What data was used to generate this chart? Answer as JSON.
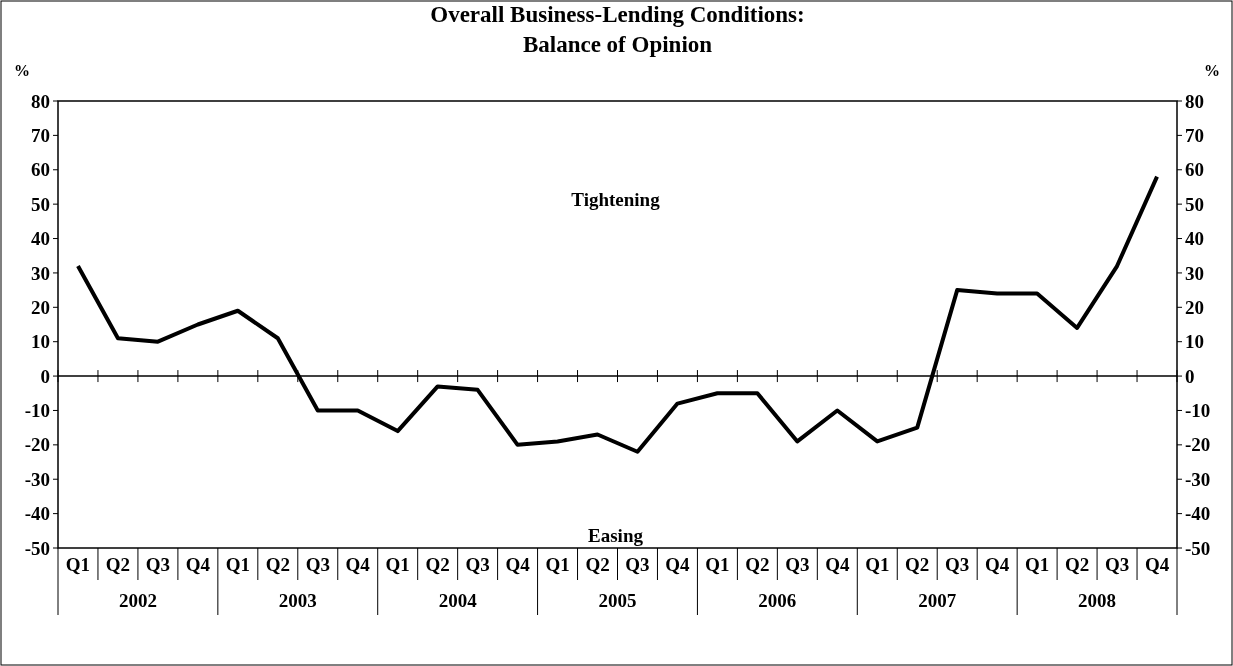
{
  "chart_data": {
    "type": "line",
    "title": "Overall Business-Lending Conditions:\nBalance of Opinion",
    "ylabel": "%",
    "y2label": "%",
    "categories": [
      "Q1",
      "Q2",
      "Q3",
      "Q4",
      "Q1",
      "Q2",
      "Q3",
      "Q4",
      "Q1",
      "Q2",
      "Q3",
      "Q4",
      "Q1",
      "Q2",
      "Q3",
      "Q4",
      "Q1",
      "Q2",
      "Q3",
      "Q4",
      "Q1",
      "Q2",
      "Q3",
      "Q4",
      "Q1",
      "Q2",
      "Q3",
      "Q4"
    ],
    "series": [
      {
        "color": "#000000",
        "values": [
          32,
          11,
          10,
          15,
          19,
          11,
          -10,
          -10,
          -16,
          -3,
          -4,
          -20,
          -19,
          -17,
          -22,
          -8,
          -5,
          -5,
          -19,
          -10,
          -19,
          -15,
          25,
          24,
          24,
          14,
          32,
          58
        ]
      }
    ],
    "ylim": [
      -50,
      80
    ],
    "yticks": [
      -50,
      -40,
      -30,
      -20,
      -10,
      0,
      10,
      20,
      30,
      40,
      50,
      60,
      70,
      80
    ],
    "y2lim": [
      -50,
      80
    ],
    "y2ticks": [
      -50,
      -40,
      -30,
      -20,
      -10,
      0,
      10,
      20,
      30,
      40,
      50,
      60,
      70,
      80
    ],
    "annotations": [
      "Tightening",
      "Easing",
      "2002",
      "2003",
      "2004",
      "2005",
      "2006",
      "2007",
      "2008"
    ],
    "marker": "none",
    "line_style": "solid"
  }
}
